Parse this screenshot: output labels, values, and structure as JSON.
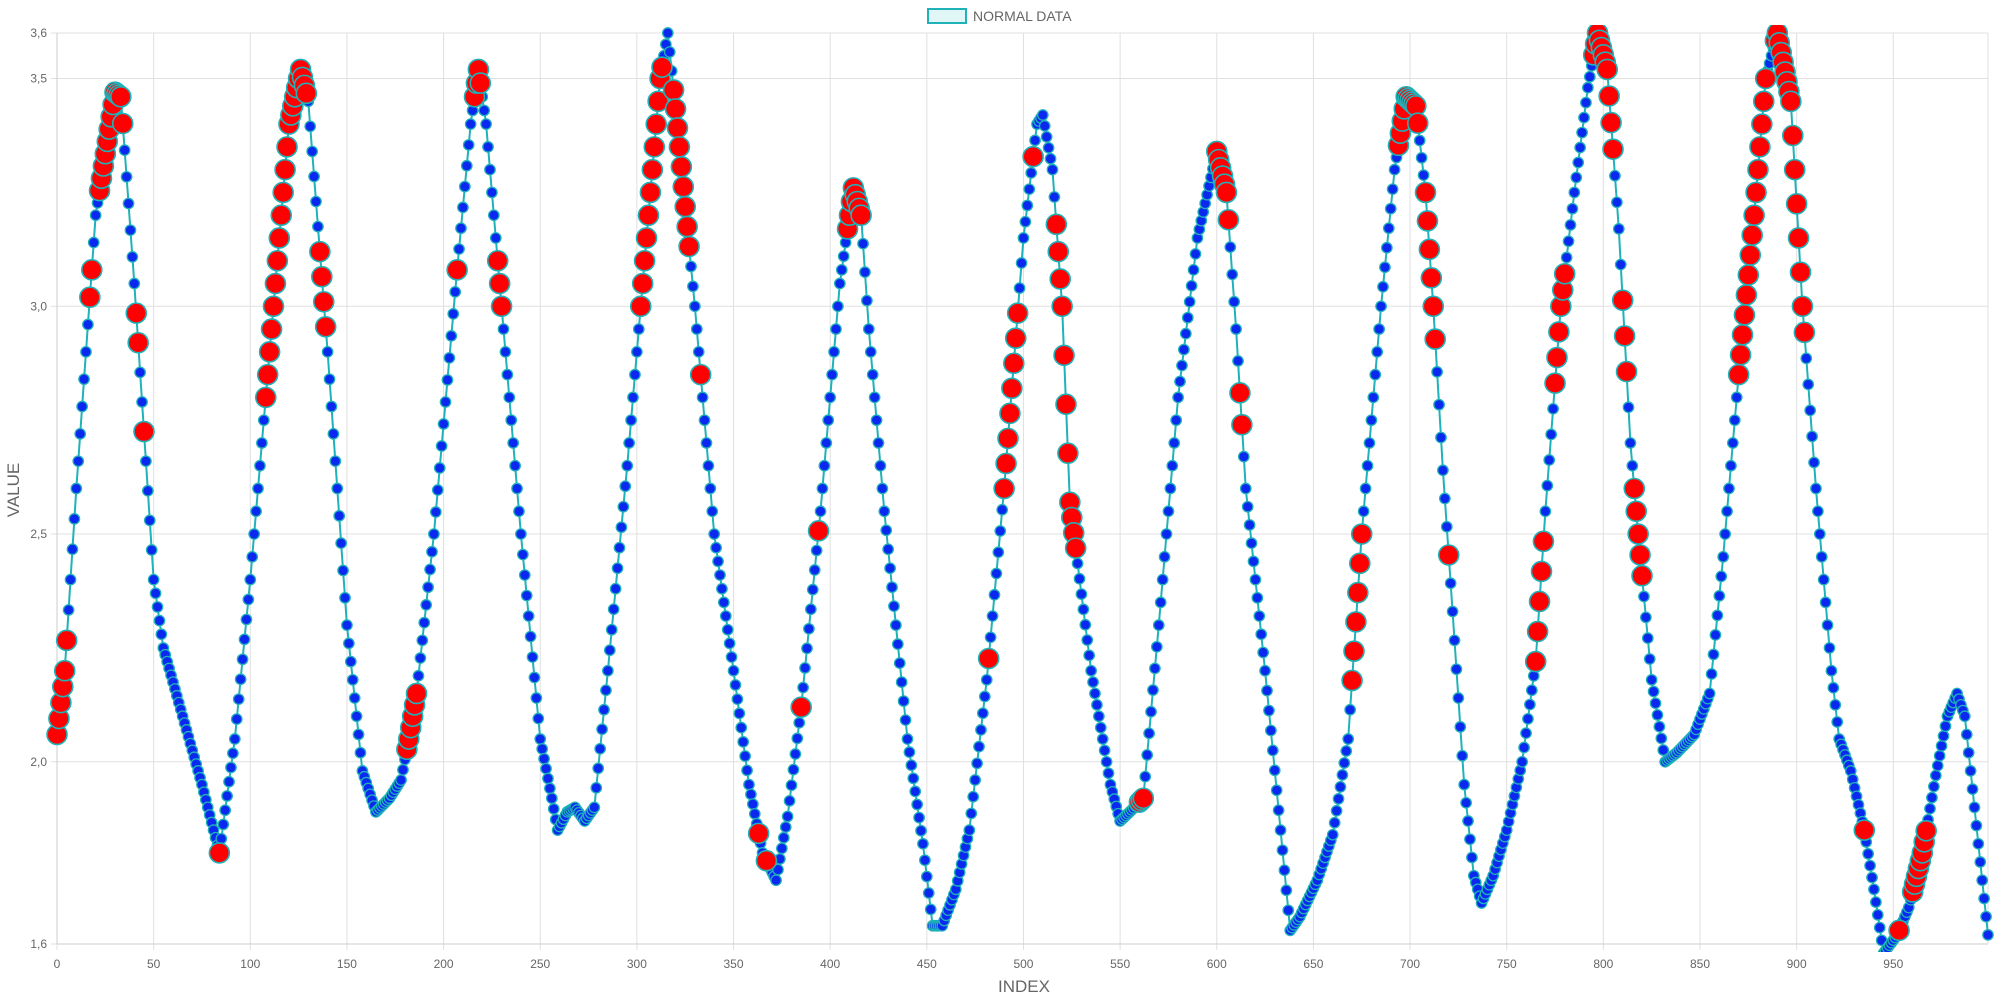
{
  "chart_data": {
    "type": "line",
    "xlabel": "INDEX",
    "ylabel": "VALUE",
    "xlim": [
      0,
      999
    ],
    "ylim": [
      1.6,
      3.6
    ],
    "x_ticks": [
      0,
      50,
      100,
      150,
      200,
      250,
      300,
      350,
      400,
      450,
      500,
      550,
      600,
      650,
      700,
      750,
      800,
      850,
      900,
      950
    ],
    "y_ticks": [
      1.6,
      2.0,
      2.5,
      3.0,
      3.5,
      3.6
    ],
    "y_tick_labels": [
      "1,6",
      "2,0",
      "2,5",
      "3,0",
      "3,5",
      "3,6"
    ],
    "grid": true,
    "legend_position": "top-center",
    "series": [
      {
        "name": "NORMAL DATA",
        "line_color": "#1fb2b8",
        "point_color": "#0a28f0",
        "anomaly_color": "#ff0000",
        "x_start": 0,
        "x_step": 1,
        "keypoints": [
          [
            0,
            2.06
          ],
          [
            4,
            2.2
          ],
          [
            10,
            2.6
          ],
          [
            20,
            3.2
          ],
          [
            30,
            3.47
          ],
          [
            33,
            3.46
          ],
          [
            40,
            3.05
          ],
          [
            50,
            2.4
          ],
          [
            55,
            2.25
          ],
          [
            65,
            2.1
          ],
          [
            75,
            1.95
          ],
          [
            84,
            1.8
          ],
          [
            92,
            2.05
          ],
          [
            100,
            2.4
          ],
          [
            110,
            2.9
          ],
          [
            120,
            3.4
          ],
          [
            126,
            3.52
          ],
          [
            130,
            3.45
          ],
          [
            140,
            2.9
          ],
          [
            150,
            2.3
          ],
          [
            158,
            1.98
          ],
          [
            165,
            1.89
          ],
          [
            172,
            1.92
          ],
          [
            178,
            1.96
          ],
          [
            182,
            2.05
          ],
          [
            186,
            2.15
          ],
          [
            195,
            2.5
          ],
          [
            207,
            3.08
          ],
          [
            214,
            3.4
          ],
          [
            218,
            3.52
          ],
          [
            222,
            3.4
          ],
          [
            230,
            3.0
          ],
          [
            240,
            2.5
          ],
          [
            250,
            2.05
          ],
          [
            256,
            1.92
          ],
          [
            259,
            1.85
          ],
          [
            264,
            1.89
          ],
          [
            268,
            1.9
          ],
          [
            273,
            1.87
          ],
          [
            278,
            1.9
          ],
          [
            285,
            2.2
          ],
          [
            295,
            2.65
          ],
          [
            305,
            3.15
          ],
          [
            312,
            3.5
          ],
          [
            316,
            3.6
          ],
          [
            322,
            3.35
          ],
          [
            330,
            3.0
          ],
          [
            340,
            2.5
          ],
          [
            350,
            2.2
          ],
          [
            358,
            1.95
          ],
          [
            365,
            1.8
          ],
          [
            372,
            1.74
          ],
          [
            378,
            1.88
          ],
          [
            385,
            2.12
          ],
          [
            395,
            2.55
          ],
          [
            405,
            3.05
          ],
          [
            412,
            3.26
          ],
          [
            416,
            3.2
          ],
          [
            420,
            2.95
          ],
          [
            428,
            2.55
          ],
          [
            440,
            2.05
          ],
          [
            448,
            1.82
          ],
          [
            453,
            1.64
          ],
          [
            458,
            1.64
          ],
          [
            465,
            1.72
          ],
          [
            472,
            1.85
          ],
          [
            481,
            2.18
          ],
          [
            490,
            2.6
          ],
          [
            500,
            3.15
          ],
          [
            507,
            3.4
          ],
          [
            510,
            3.42
          ],
          [
            515,
            3.3
          ],
          [
            520,
            3.0
          ],
          [
            524,
            2.57
          ],
          [
            535,
            2.2
          ],
          [
            545,
            1.95
          ],
          [
            550,
            1.87
          ],
          [
            555,
            1.89
          ],
          [
            562,
            1.92
          ],
          [
            570,
            2.3
          ],
          [
            580,
            2.8
          ],
          [
            590,
            3.15
          ],
          [
            600,
            3.34
          ],
          [
            605,
            3.25
          ],
          [
            610,
            2.95
          ],
          [
            615,
            2.6
          ],
          [
            625,
            2.2
          ],
          [
            633,
            1.85
          ],
          [
            638,
            1.63
          ],
          [
            643,
            1.66
          ],
          [
            652,
            1.74
          ],
          [
            660,
            1.84
          ],
          [
            668,
            2.05
          ],
          [
            675,
            2.5
          ],
          [
            685,
            3.0
          ],
          [
            692,
            3.3
          ],
          [
            698,
            3.46
          ],
          [
            703,
            3.44
          ],
          [
            708,
            3.25
          ],
          [
            712,
            3.0
          ],
          [
            717,
            2.64
          ],
          [
            722,
            2.33
          ],
          [
            728,
            1.95
          ],
          [
            733,
            1.75
          ],
          [
            737,
            1.69
          ],
          [
            743,
            1.75
          ],
          [
            750,
            1.85
          ],
          [
            758,
            2.0
          ],
          [
            765,
            2.22
          ],
          [
            770,
            2.55
          ],
          [
            778,
            3.0
          ],
          [
            785,
            3.25
          ],
          [
            792,
            3.48
          ],
          [
            797,
            3.6
          ],
          [
            802,
            3.52
          ],
          [
            808,
            3.17
          ],
          [
            814,
            2.7
          ],
          [
            818,
            2.5
          ],
          [
            825,
            2.18
          ],
          [
            832,
            2.0
          ],
          [
            838,
            2.02
          ],
          [
            847,
            2.06
          ],
          [
            855,
            2.15
          ],
          [
            862,
            2.45
          ],
          [
            870,
            2.85
          ],
          [
            878,
            3.2
          ],
          [
            884,
            3.5
          ],
          [
            890,
            3.6
          ],
          [
            897,
            3.45
          ],
          [
            903,
            3.0
          ],
          [
            910,
            2.6
          ],
          [
            918,
            2.2
          ],
          [
            922,
            2.05
          ],
          [
            928,
            1.98
          ],
          [
            935,
            1.85
          ],
          [
            940,
            1.72
          ],
          [
            945,
            1.58
          ],
          [
            952,
            1.62
          ],
          [
            958,
            1.68
          ],
          [
            965,
            1.8
          ],
          [
            972,
            1.97
          ],
          [
            978,
            2.1
          ],
          [
            983,
            2.15
          ],
          [
            987,
            2.1
          ],
          [
            993,
            1.86
          ],
          [
            997,
            1.7
          ],
          [
            999,
            1.62
          ]
        ],
        "anomaly_ranges": [
          [
            0,
            5
          ],
          [
            17,
            18
          ],
          [
            22,
            34
          ],
          [
            41,
            42
          ],
          [
            45,
            45
          ],
          [
            84,
            84
          ],
          [
            108,
            129
          ],
          [
            136,
            139
          ],
          [
            181,
            186
          ],
          [
            207,
            207
          ],
          [
            216,
            219
          ],
          [
            228,
            230
          ],
          [
            302,
            313
          ],
          [
            319,
            327
          ],
          [
            333,
            333
          ],
          [
            363,
            363
          ],
          [
            367,
            367
          ],
          [
            385,
            385
          ],
          [
            394,
            394
          ],
          [
            409,
            416
          ],
          [
            482,
            482
          ],
          [
            490,
            497
          ],
          [
            505,
            505
          ],
          [
            517,
            527
          ],
          [
            560,
            562
          ],
          [
            600,
            606
          ],
          [
            612,
            613
          ],
          [
            670,
            675
          ],
          [
            694,
            704
          ],
          [
            708,
            713
          ],
          [
            720,
            720
          ],
          [
            765,
            769
          ],
          [
            775,
            780
          ],
          [
            795,
            805
          ],
          [
            810,
            812
          ],
          [
            816,
            820
          ],
          [
            870,
            884
          ],
          [
            889,
            904
          ],
          [
            935,
            935
          ],
          [
            953,
            953
          ],
          [
            960,
            967
          ]
        ]
      }
    ]
  }
}
